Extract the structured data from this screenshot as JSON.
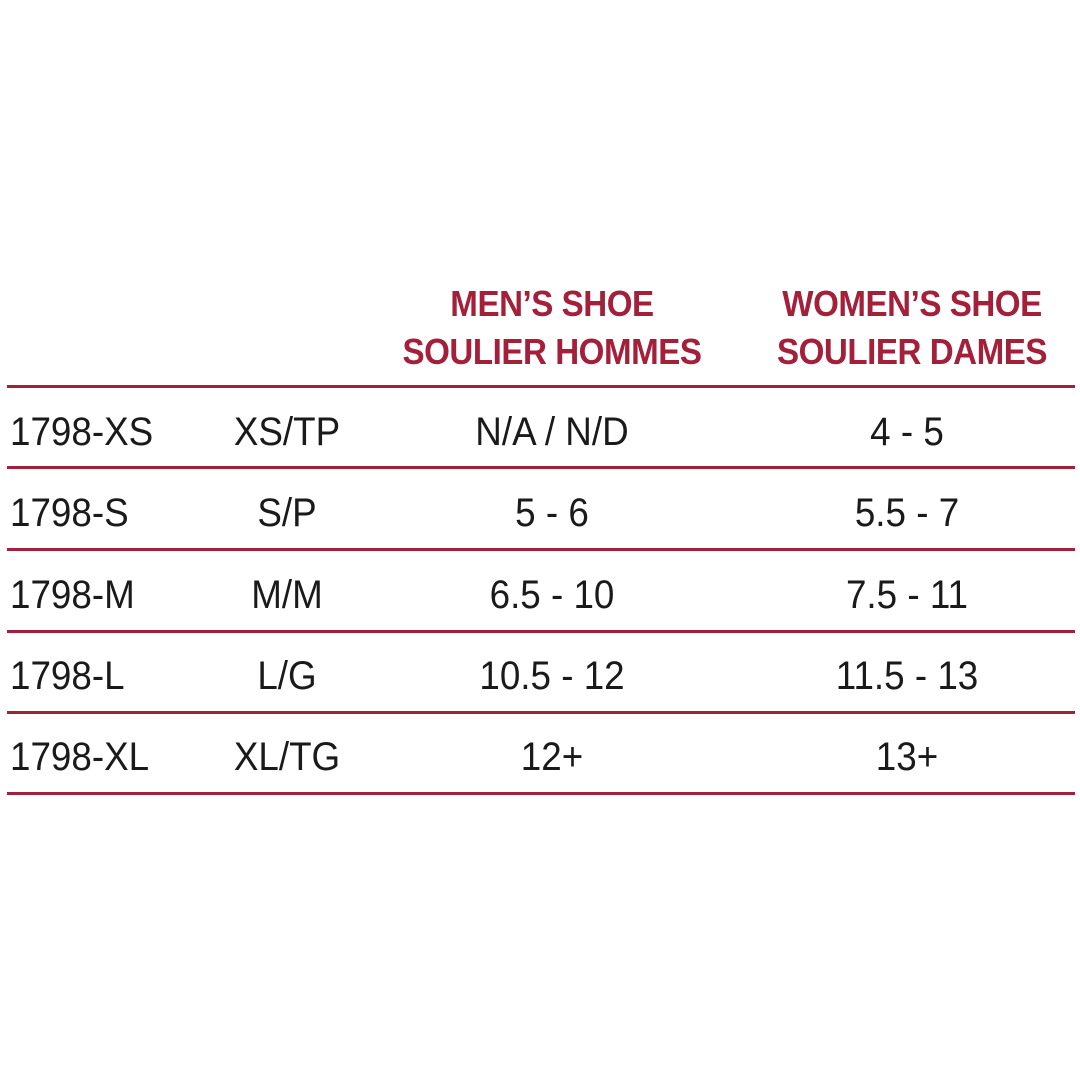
{
  "header": {
    "mens_line1": "MEN’S SHOE",
    "mens_line2": "SOULIER HOMMES",
    "womens_line1": "WOMEN’S SHOE",
    "womens_line2": "SOULIER DAMES"
  },
  "rows": [
    {
      "sku": "1798-XS",
      "size": "XS/TP",
      "mens": "N/A / N/D",
      "womens": "4 - 5"
    },
    {
      "sku": "1798-S",
      "size": "S/P",
      "mens": "5 - 6",
      "womens": "5.5 - 7"
    },
    {
      "sku": "1798-M",
      "size": "M/M",
      "mens": "6.5 - 10",
      "womens": "7.5 - 11"
    },
    {
      "sku": "1798-L",
      "size": "L/G",
      "mens": "10.5 - 12",
      "womens": "11.5 - 13"
    },
    {
      "sku": "1798-XL",
      "size": "XL/TG",
      "mens": "12+",
      "womens": "13+"
    }
  ],
  "colors": {
    "accent": "#a31f3a",
    "text": "#1a1a1a",
    "background": "#ffffff"
  }
}
